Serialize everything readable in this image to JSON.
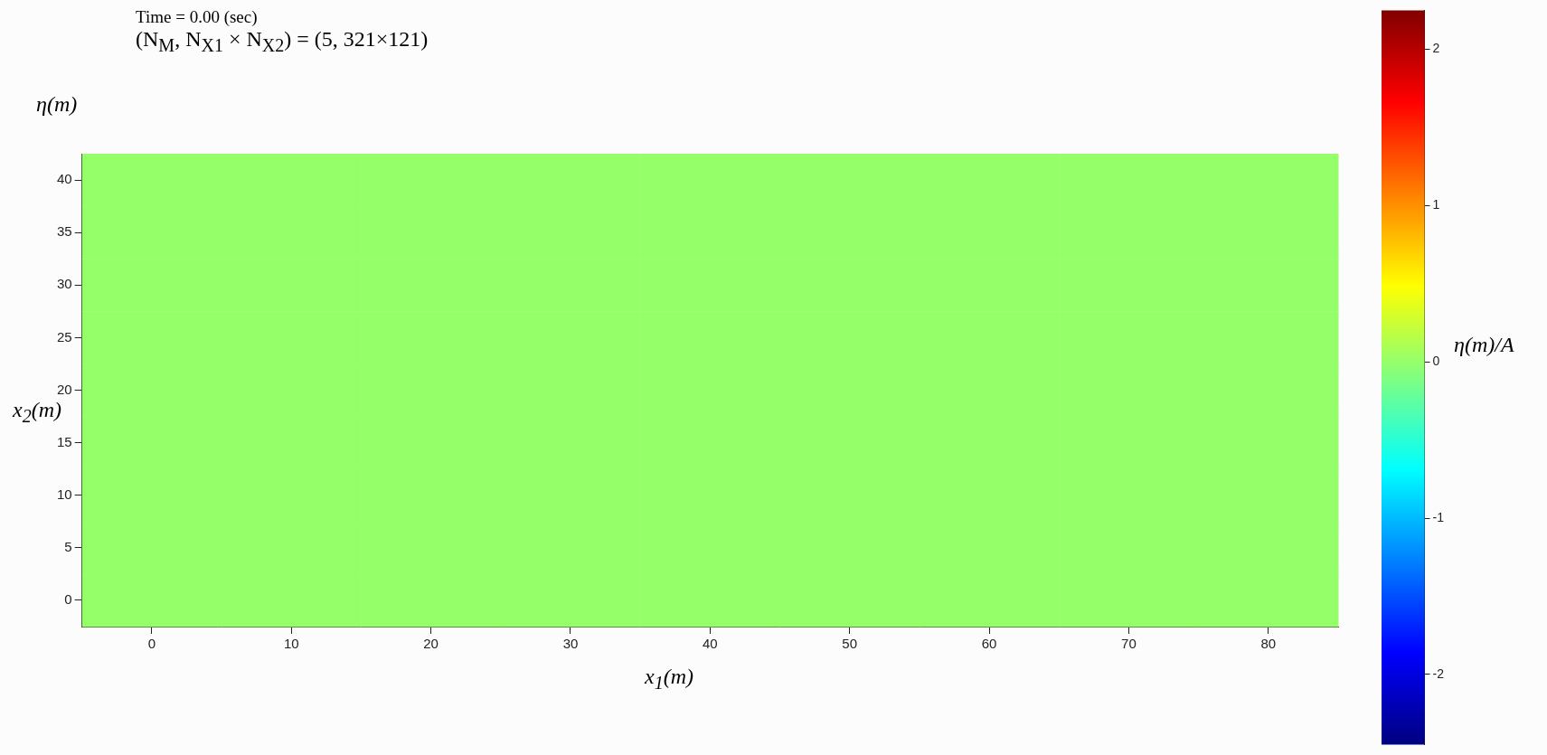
{
  "chart_data": {
    "type": "heatmap",
    "title": "Time = 0.00 (sec)",
    "subtitle": "(N$_{M}$, N$_{X1}$ × N$_{X2}$) = (5, 321×121)",
    "xlabel": "x$_{1}$(m)",
    "ylabel": "x$_{2}$(m)",
    "clabel": "η(m)/A",
    "annotations": [
      "η(m)"
    ],
    "categories": [
      "0",
      "10",
      "20",
      "30",
      "40",
      "50",
      "60",
      "70",
      "80"
    ],
    "y_categories": [
      "40",
      "35",
      "30",
      "25",
      "20",
      "15",
      "10",
      "5",
      "0"
    ],
    "cells": [
      [
        0,
        0,
        0,
        0,
        0,
        0,
        0,
        0,
        0
      ],
      [
        0,
        0,
        0,
        0,
        0,
        0,
        0,
        0,
        0
      ],
      [
        0,
        0,
        0,
        0,
        0,
        0,
        0,
        0,
        0
      ],
      [
        0,
        0,
        0,
        0,
        0,
        0,
        0,
        0,
        0
      ],
      [
        0,
        0,
        0,
        0,
        0,
        0,
        0,
        0,
        0
      ],
      [
        0,
        0,
        0,
        0,
        0,
        0,
        0,
        0,
        0
      ],
      [
        0,
        0,
        0,
        0,
        0,
        0,
        0,
        0,
        0
      ],
      [
        0,
        0,
        0,
        0,
        0,
        0,
        0,
        0,
        0
      ],
      [
        0,
        0,
        0,
        0,
        0,
        0,
        0,
        0,
        0
      ]
    ],
    "clim": [
      -2.45,
      2.25
    ],
    "cticks": [
      -2,
      -1,
      0,
      1,
      2
    ]
  }
}
